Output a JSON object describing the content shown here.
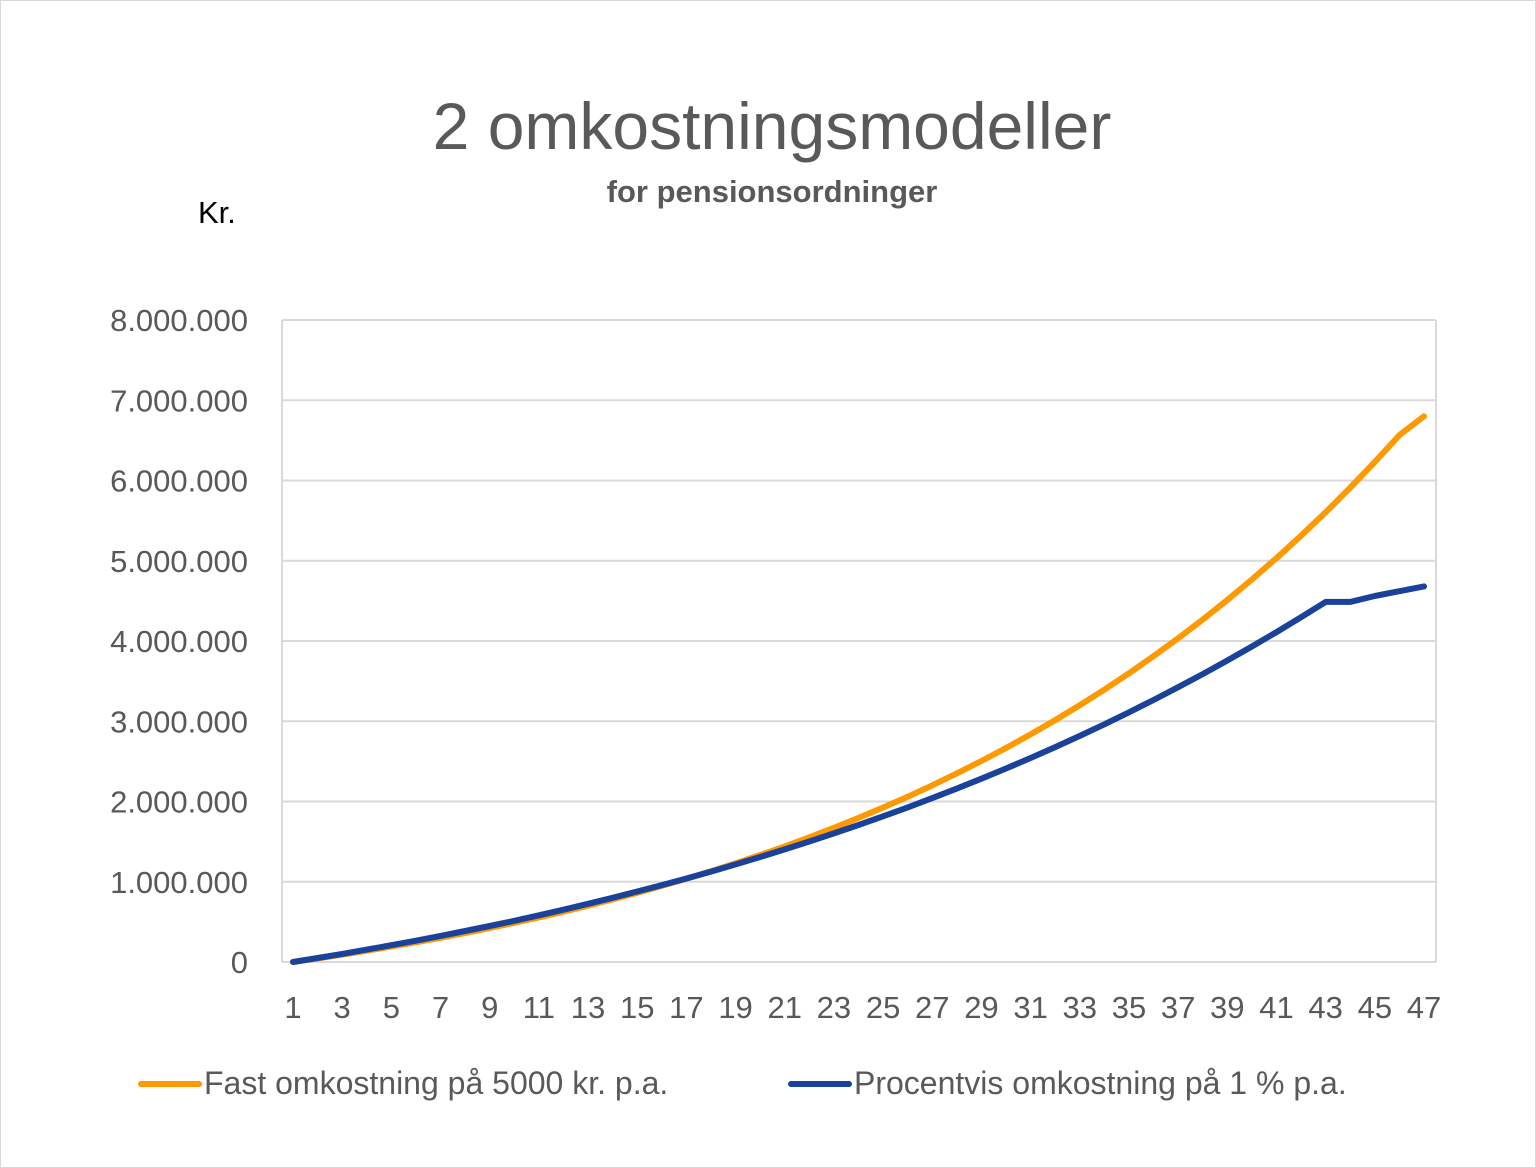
{
  "chart_data": {
    "type": "line",
    "title": "2 omkostningsmodeller",
    "subtitle": "for pensionsordninger",
    "xlabel": "",
    "ylabel": "Kr.",
    "ylim": [
      0,
      8000000
    ],
    "y_ticks": [
      "0",
      "1.000.000",
      "2.000.000",
      "3.000.000",
      "4.000.000",
      "5.000.000",
      "6.000.000",
      "7.000.000",
      "8.000.000"
    ],
    "x_tick_labels": [
      "1",
      "3",
      "5",
      "7",
      "9",
      "11",
      "13",
      "15",
      "17",
      "19",
      "21",
      "23",
      "25",
      "27",
      "29",
      "31",
      "33",
      "35",
      "37",
      "39",
      "41",
      "43",
      "45",
      "47"
    ],
    "grid": true,
    "legend_position": "bottom",
    "x": [
      1,
      2,
      3,
      4,
      5,
      6,
      7,
      8,
      9,
      10,
      11,
      12,
      13,
      14,
      15,
      16,
      17,
      18,
      19,
      20,
      21,
      22,
      23,
      24,
      25,
      26,
      27,
      28,
      29,
      30,
      31,
      32,
      33,
      34,
      35,
      36,
      37,
      38,
      39,
      40,
      41,
      42,
      43,
      44,
      45,
      46,
      47
    ],
    "series": [
      {
        "name": "Fast omkostning på 5000 kr. p.a.",
        "color": "#FF9900",
        "values": [
          0,
          45000,
          92000,
          141000,
          192000,
          246000,
          302000,
          361000,
          423000,
          488000,
          556000,
          627000,
          702000,
          780000,
          862000,
          948000,
          1038000,
          1132000,
          1230000,
          1333000,
          1441000,
          1554000,
          1672000,
          1796000,
          1925000,
          2060000,
          2202000,
          2350000,
          2505000,
          2667000,
          2836000,
          3014000,
          3200000,
          3394000,
          3598000,
          3811000,
          4034000,
          4267000,
          4511000,
          4766000,
          5033000,
          5313000,
          5605000,
          5911000,
          6231000,
          6566000,
          6800000
        ]
      },
      {
        "name": "Procentvis omkostning på 1 % p.a.",
        "color": "#1A429A",
        "values": [
          0,
          50000,
          101000,
          154000,
          209000,
          266000,
          325000,
          386000,
          449000,
          514000,
          582000,
          652000,
          725000,
          800000,
          878000,
          958000,
          1041000,
          1127000,
          1216000,
          1308000,
          1403000,
          1501000,
          1602000,
          1707000,
          1815000,
          1927000,
          2042000,
          2161000,
          2284000,
          2411000,
          2542000,
          2678000,
          2818000,
          2962000,
          3111000,
          3265000,
          3424000,
          3588000,
          3757000,
          3931000,
          4111000,
          4296000,
          4487000,
          4680000,
          4680000,
          4680000,
          4680000
        ]
      }
    ]
  },
  "legend": [
    {
      "label": "Fast omkostning på 5000 kr. p.a.",
      "color": "#FF9900"
    },
    {
      "label": "Procentvis omkostning på 1 % p.a.",
      "color": "#1A429A"
    }
  ]
}
